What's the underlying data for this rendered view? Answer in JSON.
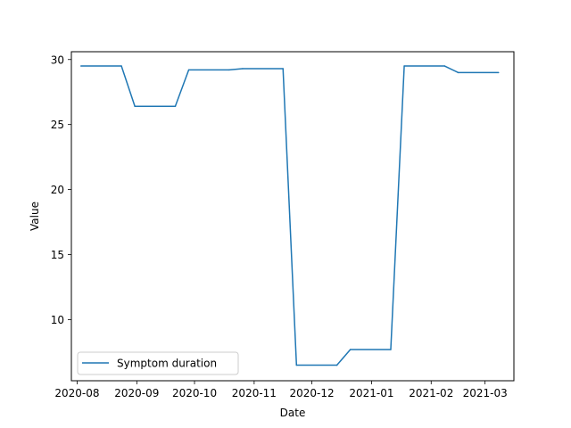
{
  "chart_data": {
    "type": "line",
    "xlabel": "Date",
    "ylabel": "Value",
    "x_type": "date",
    "xlim": [
      "2020-07-29",
      "2021-03-16"
    ],
    "ylim": [
      5.3,
      30.6
    ],
    "x_ticks": [
      "2020-08",
      "2020-09",
      "2020-10",
      "2020-11",
      "2020-12",
      "2021-01",
      "2021-02",
      "2021-03"
    ],
    "x_tick_dates": [
      "2020-08-01",
      "2020-09-01",
      "2020-10-01",
      "2020-11-01",
      "2020-12-01",
      "2021-01-01",
      "2021-02-01",
      "2021-03-01"
    ],
    "y_ticks": [
      10,
      15,
      20,
      25,
      30
    ],
    "grid": false,
    "legend": {
      "placement": "lower-left",
      "entries": [
        "Symptom duration"
      ]
    },
    "series": [
      {
        "name": "Symptom duration",
        "color": "#1f77b4",
        "x": [
          "2020-08-03",
          "2020-08-24",
          "2020-08-31",
          "2020-09-21",
          "2020-09-28",
          "2020-10-19",
          "2020-10-26",
          "2020-11-16",
          "2020-11-23",
          "2020-12-14",
          "2020-12-21",
          "2021-01-11",
          "2021-01-18",
          "2021-02-08",
          "2021-02-15",
          "2021-03-08"
        ],
        "y": [
          29.5,
          29.5,
          26.4,
          26.4,
          29.2,
          29.2,
          29.3,
          29.3,
          6.5,
          6.5,
          7.7,
          7.7,
          29.5,
          29.5,
          29.0,
          29.0
        ]
      }
    ]
  }
}
